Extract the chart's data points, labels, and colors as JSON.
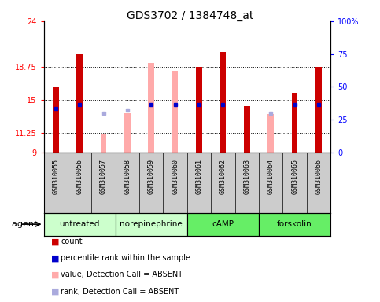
{
  "title": "GDS3702 / 1384748_at",
  "samples": [
    "GSM310055",
    "GSM310056",
    "GSM310057",
    "GSM310058",
    "GSM310059",
    "GSM310060",
    "GSM310061",
    "GSM310062",
    "GSM310063",
    "GSM310064",
    "GSM310065",
    "GSM310066"
  ],
  "agents": [
    {
      "label": "untreated",
      "start": 0,
      "end": 3,
      "color": "#ccffcc"
    },
    {
      "label": "norepinephrine",
      "start": 3,
      "end": 6,
      "color": "#ccffcc"
    },
    {
      "label": "cAMP",
      "start": 6,
      "end": 9,
      "color": "#66ee66"
    },
    {
      "label": "forskolin",
      "start": 9,
      "end": 12,
      "color": "#66ee66"
    }
  ],
  "red_bars": [
    16.5,
    20.2,
    null,
    null,
    null,
    null,
    18.75,
    20.5,
    14.3,
    null,
    15.8,
    18.75
  ],
  "pink_bars": [
    null,
    null,
    11.15,
    13.5,
    19.2,
    18.3,
    null,
    null,
    null,
    13.4,
    null,
    null
  ],
  "blue_dots": [
    14.0,
    14.5,
    null,
    null,
    14.5,
    14.5,
    14.5,
    14.5,
    null,
    null,
    14.5,
    14.5
  ],
  "lavender_dots": [
    null,
    null,
    13.5,
    13.85,
    null,
    null,
    null,
    null,
    null,
    13.5,
    null,
    null
  ],
  "ymin": 9,
  "ymax": 24,
  "yticks": [
    9,
    11.25,
    15,
    18.75,
    24
  ],
  "ytick_labels": [
    "9",
    "11.25",
    "15",
    "18.75",
    "24"
  ],
  "y2ticks": [
    0,
    25,
    50,
    75,
    100
  ],
  "y2tick_labels": [
    "0",
    "25",
    "50",
    "75",
    "100%"
  ],
  "bar_width": 0.25,
  "red_color": "#cc0000",
  "pink_color": "#ffaaaa",
  "blue_color": "#0000cc",
  "lavender_color": "#aaaadd",
  "gsm_bg": "#cccccc",
  "plot_bg": "#ffffff",
  "legend_items": [
    {
      "label": "count",
      "color": "#cc0000"
    },
    {
      "label": "percentile rank within the sample",
      "color": "#0000cc"
    },
    {
      "label": "value, Detection Call = ABSENT",
      "color": "#ffaaaa"
    },
    {
      "label": "rank, Detection Call = ABSENT",
      "color": "#aaaadd"
    }
  ]
}
